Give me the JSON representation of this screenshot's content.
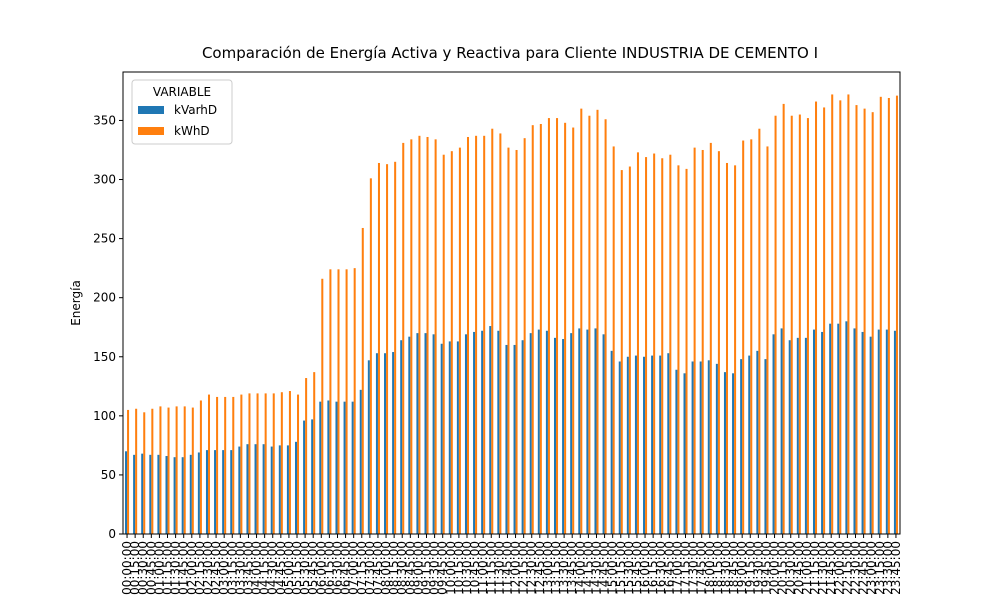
{
  "chart_data": {
    "type": "bar",
    "title": "Comparación de Energía Activa y Reactiva para Cliente INDUSTRIA DE CEMENTO I",
    "ylabel": "Energía",
    "legend_title": "VARIABLE",
    "legend": "upper left",
    "categories": [
      "00:00:00",
      "00:15:00",
      "00:30:00",
      "00:45:00",
      "01:00:00",
      "01:15:00",
      "01:30:00",
      "01:45:00",
      "02:00:00",
      "02:15:00",
      "02:30:00",
      "02:45:00",
      "03:00:00",
      "03:15:00",
      "03:30:00",
      "03:45:00",
      "04:00:00",
      "04:15:00",
      "04:30:00",
      "04:45:00",
      "05:00:00",
      "05:15:00",
      "05:30:00",
      "05:45:00",
      "06:00:00",
      "06:15:00",
      "06:30:00",
      "06:45:00",
      "07:00:00",
      "07:15:00",
      "07:30:00",
      "07:45:00",
      "08:00:00",
      "08:15:00",
      "08:30:00",
      "08:45:00",
      "09:00:00",
      "09:15:00",
      "09:30:00",
      "09:45:00",
      "10:00:00",
      "10:15:00",
      "10:30:00",
      "10:45:00",
      "11:00:00",
      "11:15:00",
      "11:30:00",
      "11:45:00",
      "12:00:00",
      "12:15:00",
      "12:30:00",
      "12:45:00",
      "13:00:00",
      "13:15:00",
      "13:30:00",
      "13:45:00",
      "14:00:00",
      "14:15:00",
      "14:30:00",
      "14:45:00",
      "15:00:00",
      "15:15:00",
      "15:30:00",
      "15:45:00",
      "16:00:00",
      "16:15:00",
      "16:30:00",
      "16:45:00",
      "17:00:00",
      "17:15:00",
      "17:30:00",
      "17:45:00",
      "18:00:00",
      "18:15:00",
      "18:30:00",
      "18:45:00",
      "19:00:00",
      "19:15:00",
      "19:30:00",
      "19:45:00",
      "20:00:00",
      "20:15:00",
      "20:30:00",
      "20:45:00",
      "21:00:00",
      "21:15:00",
      "21:30:00",
      "21:45:00",
      "22:00:00",
      "22:15:00",
      "22:30:00",
      "22:45:00",
      "23:00:00",
      "23:15:00",
      "23:30:00",
      "23:45:00"
    ],
    "series": [
      {
        "name": "kVarhD",
        "color": "#1f77b4",
        "values": [
          70,
          67,
          68,
          67,
          67,
          66,
          65,
          65,
          67,
          69,
          71,
          71,
          71,
          71,
          74,
          76,
          76,
          76,
          74,
          75,
          75,
          78,
          96,
          97,
          112,
          113,
          112,
          112,
          112,
          122,
          147,
          153,
          153,
          154,
          164,
          167,
          170,
          170,
          169,
          161,
          163,
          163,
          169,
          171,
          172,
          176,
          172,
          160,
          160,
          164,
          170,
          173,
          172,
          166,
          165,
          170,
          174,
          173,
          174,
          169,
          155,
          146,
          150,
          151,
          150,
          151,
          151,
          153,
          139,
          136,
          146,
          146,
          147,
          144,
          137,
          136,
          148,
          151,
          155,
          148,
          169,
          174,
          164,
          166,
          166,
          173,
          171,
          178,
          178,
          180,
          174,
          171,
          167,
          173,
          173,
          172
        ]
      },
      {
        "name": "kWhD",
        "color": "#ff7f0e",
        "values": [
          105,
          106,
          103,
          106,
          108,
          107,
          108,
          108,
          107,
          113,
          118,
          116,
          116,
          116,
          118,
          119,
          119,
          119,
          119,
          120,
          121,
          118,
          132,
          137,
          216,
          224,
          224,
          224,
          225,
          259,
          301,
          314,
          313,
          315,
          331,
          334,
          337,
          336,
          334,
          321,
          324,
          327,
          336,
          337,
          337,
          343,
          339,
          327,
          325,
          335,
          346,
          347,
          352,
          352,
          348,
          344,
          360,
          354,
          359,
          351,
          328,
          308,
          311,
          323,
          319,
          322,
          318,
          321,
          312,
          309,
          327,
          325,
          331,
          324,
          314,
          312,
          333,
          334,
          343,
          328,
          354,
          364,
          354,
          355,
          352,
          366,
          361,
          372,
          367,
          372,
          363,
          360,
          357,
          370,
          369,
          371
        ]
      }
    ],
    "ylim": [
      0,
      391
    ],
    "yticks": [
      0,
      50,
      100,
      150,
      200,
      250,
      300,
      350
    ]
  }
}
